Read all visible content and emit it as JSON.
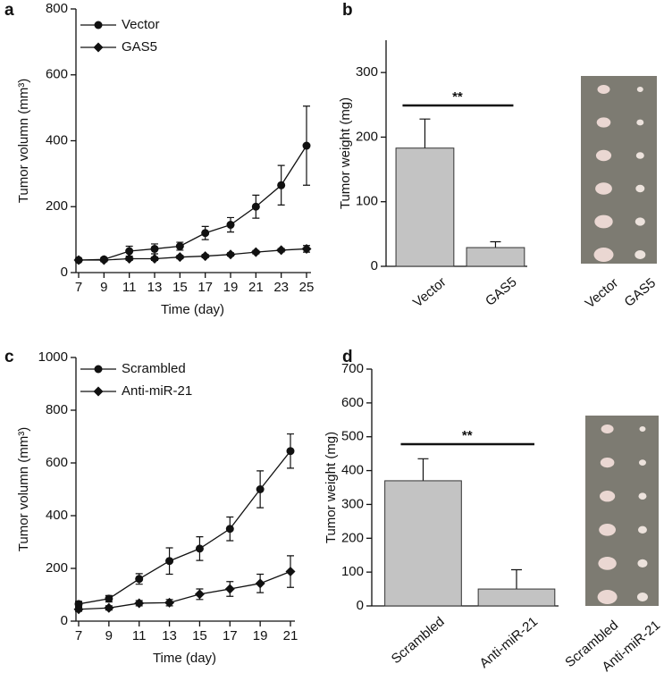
{
  "chart_data": [
    {
      "type": "line",
      "panel": "a",
      "x_label": "Time (day)",
      "y_label": "Tumor volumn (mm³)",
      "x": [
        7,
        9,
        11,
        13,
        15,
        17,
        19,
        21,
        23,
        25
      ],
      "xlim": [
        7,
        25
      ],
      "xticks": [
        7,
        9,
        11,
        13,
        15,
        17,
        19,
        21,
        23,
        25
      ],
      "ylim": [
        0,
        800
      ],
      "yticks": [
        0,
        200,
        400,
        600,
        800
      ],
      "series": [
        {
          "name": "Vector",
          "color": "#111111",
          "marker": "circle",
          "values": [
            38,
            40,
            65,
            72,
            80,
            120,
            145,
            200,
            265,
            385
          ],
          "errors": [
            5,
            5,
            15,
            15,
            12,
            20,
            22,
            35,
            60,
            120
          ]
        },
        {
          "name": "GAS5",
          "color": "#111111",
          "marker": "diamond",
          "values": [
            38,
            38,
            42,
            42,
            47,
            50,
            55,
            62,
            68,
            72
          ],
          "errors": [
            5,
            5,
            5,
            5,
            5,
            5,
            5,
            5,
            5,
            10
          ]
        }
      ]
    },
    {
      "type": "bar",
      "panel": "b",
      "y_label": "Tumor weight (mg)",
      "categories": [
        "Vector",
        "GAS5"
      ],
      "values": [
        183,
        29
      ],
      "errors": [
        45,
        9
      ],
      "color": "#c3c3c3",
      "ylim": [
        0,
        350
      ],
      "yticks": [
        0,
        100,
        200,
        300
      ],
      "annotation": "**",
      "photo_labels": [
        "Vector",
        "GAS5"
      ]
    },
    {
      "type": "line",
      "panel": "c",
      "x_label": "Time (day)",
      "y_label": "Tumor volumn (mm³)",
      "x": [
        7,
        9,
        11,
        13,
        15,
        17,
        19,
        21
      ],
      "xlim": [
        7,
        21
      ],
      "xticks": [
        7,
        9,
        11,
        13,
        15,
        17,
        19,
        21
      ],
      "ylim": [
        0,
        1000
      ],
      "yticks": [
        0,
        200,
        400,
        600,
        800,
        1000
      ],
      "series": [
        {
          "name": "Scrambled",
          "color": "#111111",
          "marker": "circle",
          "values": [
            65,
            85,
            160,
            228,
            275,
            350,
            500,
            645
          ],
          "errors": [
            10,
            12,
            20,
            50,
            45,
            45,
            70,
            65
          ]
        },
        {
          "name": "Anti-miR-21",
          "color": "#111111",
          "marker": "diamond",
          "values": [
            45,
            50,
            68,
            70,
            102,
            122,
            143,
            188
          ],
          "errors": [
            8,
            8,
            10,
            12,
            20,
            28,
            35,
            60
          ]
        }
      ]
    },
    {
      "type": "bar",
      "panel": "d",
      "y_label": "Tumor weight (mg)",
      "categories": [
        "Scrambled",
        "Anti-miR-21"
      ],
      "values": [
        370,
        50
      ],
      "errors": [
        65,
        57
      ],
      "color": "#c3c3c3",
      "ylim": [
        0,
        700
      ],
      "yticks": [
        0,
        100,
        200,
        300,
        400,
        500,
        600,
        700
      ],
      "annotation": "**",
      "photo_labels": [
        "Scrambled",
        "Anti-miR-21"
      ]
    }
  ]
}
